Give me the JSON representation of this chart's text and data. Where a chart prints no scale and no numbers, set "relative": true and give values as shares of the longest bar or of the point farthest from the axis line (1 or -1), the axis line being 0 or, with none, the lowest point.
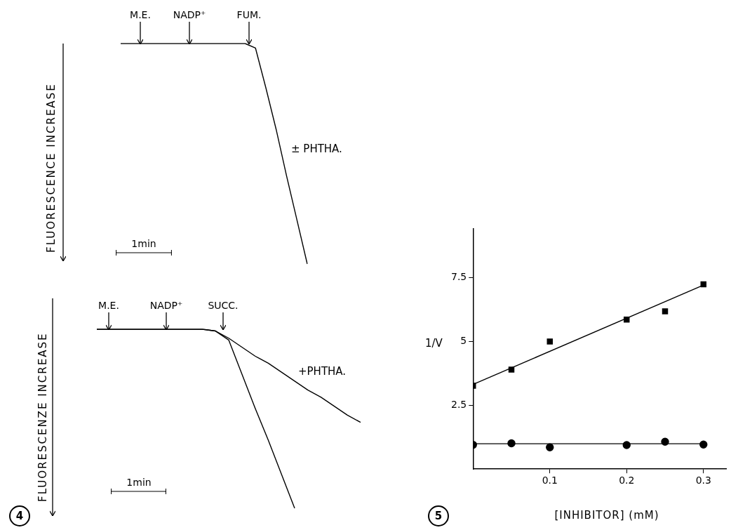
{
  "chart_data": [
    {
      "type": "line",
      "relative": true,
      "ylabel": "FLUORESCENCE INCREASE",
      "annotations": [
        "M.E.",
        "NADP⁺",
        "FUM.",
        "1min"
      ],
      "categories": [
        null,
        null,
        null,
        null,
        null,
        null,
        null,
        null,
        null,
        null,
        null,
        null,
        null,
        null,
        null,
        null,
        null,
        null,
        null
      ],
      "series": [
        {
          "name": "± PHTHA.",
          "color": "#000000",
          "values": [
            1,
            1,
            1,
            1,
            1,
            1,
            1,
            1,
            1,
            1,
            1,
            1,
            1,
            0.98,
            0.8,
            0.61,
            0.4,
            0.2,
            0
          ]
        }
      ]
    },
    {
      "type": "line",
      "relative": true,
      "ylabel": "FLUORESCENZE INCREASE",
      "annotations": [
        "M.E.",
        "NADP⁺",
        "SUCC.",
        "1min",
        "4"
      ],
      "categories": [
        null,
        null,
        null,
        null,
        null,
        null,
        null,
        null,
        null,
        null,
        null,
        null,
        null,
        null,
        null,
        null,
        null,
        null,
        null,
        null,
        null
      ],
      "series": [
        {
          "color": "#000000",
          "values": [
            1,
            1,
            1,
            1,
            1,
            1,
            1,
            1,
            1,
            0.99,
            0.94,
            0.75,
            0.56,
            0.38,
            0.19,
            0,
            null,
            null,
            null,
            null,
            null
          ]
        },
        {
          "name": "+PHTHA.",
          "color": "#000000",
          "values": [
            1,
            1,
            1,
            1,
            1,
            1,
            1,
            1,
            1,
            0.99,
            0.95,
            0.9,
            0.85,
            0.81,
            0.76,
            0.71,
            0.66,
            0.62,
            0.57,
            0.52,
            0.48
          ]
        }
      ]
    },
    {
      "type": "scatter",
      "xlabel": "[INHIBITOR] (mM)",
      "ylabel": "1/V",
      "annotations": [
        "5"
      ],
      "xlim": [
        0,
        0.33
      ],
      "ylim": [
        0,
        9.4
      ],
      "xticks": [
        0.1,
        0.2,
        0.3
      ],
      "yticks": [
        2.5,
        5,
        7.5
      ],
      "series": [
        {
          "color": "#000000",
          "marker": "square",
          "x": [
            0,
            0.05,
            0.1,
            0.2,
            0.25,
            0.3
          ],
          "values": [
            3.26,
            3.89,
            4.99,
            5.85,
            6.17,
            7.23
          ]
        },
        {
          "color": "#000000",
          "marker": "circle",
          "x": [
            0,
            0.05,
            0.1,
            0.2,
            0.25,
            0.3
          ],
          "values": [
            0.95,
            1.01,
            0.85,
            0.94,
            1.07,
            0.96
          ]
        },
        {
          "type": "line",
          "color": "#000000",
          "marker": "none",
          "x": [
            0,
            0.3
          ],
          "values": [
            3.31,
            7.2
          ]
        },
        {
          "type": "line",
          "color": "#000000",
          "marker": "none",
          "x": [
            0,
            0.3
          ],
          "values": [
            0.99,
            0.99
          ]
        }
      ]
    }
  ]
}
